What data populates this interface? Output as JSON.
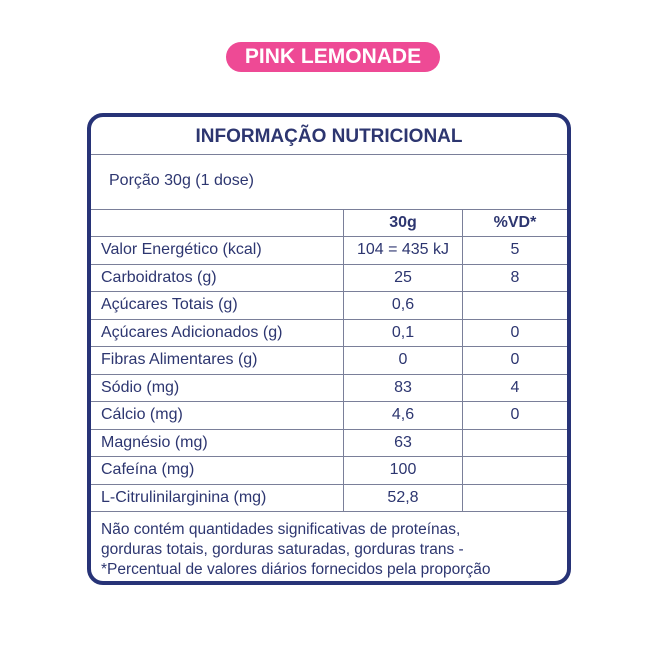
{
  "badge": "PINK LEMONADE",
  "title": "INFORMAÇÃO NUTRICIONAL",
  "portion": "Porção 30g (1 dose)",
  "columns": [
    "",
    "30g",
    "%VD*"
  ],
  "rows": [
    {
      "name": "Valor Energético (kcal)",
      "value": "104 = 435 kJ",
      "vd": "5"
    },
    {
      "name": "Carboidratos (g)",
      "value": "25",
      "vd": "8"
    },
    {
      "name": "Açúcares Totais (g)",
      "value": "0,6",
      "vd": ""
    },
    {
      "name": "Açúcares Adicionados (g)",
      "value": "0,1",
      "vd": "0"
    },
    {
      "name": "Fibras Alimentares (g)",
      "value": "0",
      "vd": "0"
    },
    {
      "name": "Sódio (mg)",
      "value": "83",
      "vd": "4"
    },
    {
      "name": "Cálcio (mg)",
      "value": "4,6",
      "vd": "0"
    },
    {
      "name": "Magnésio (mg)",
      "value": "63",
      "vd": ""
    },
    {
      "name": "Cafeína (mg)",
      "value": "100",
      "vd": ""
    },
    {
      "name": "L-Citrulinilarginina (mg)",
      "value": "52,8",
      "vd": ""
    }
  ],
  "footer": [
    "Não contém quantidades significativas de proteínas,",
    "gorduras totais, gorduras saturadas, gorduras trans -",
    "*Percentual de valores diários fornecidos pela proporção"
  ],
  "colors": {
    "badge": "#ee4a95",
    "border": "#273377",
    "text": "#2d3670"
  }
}
